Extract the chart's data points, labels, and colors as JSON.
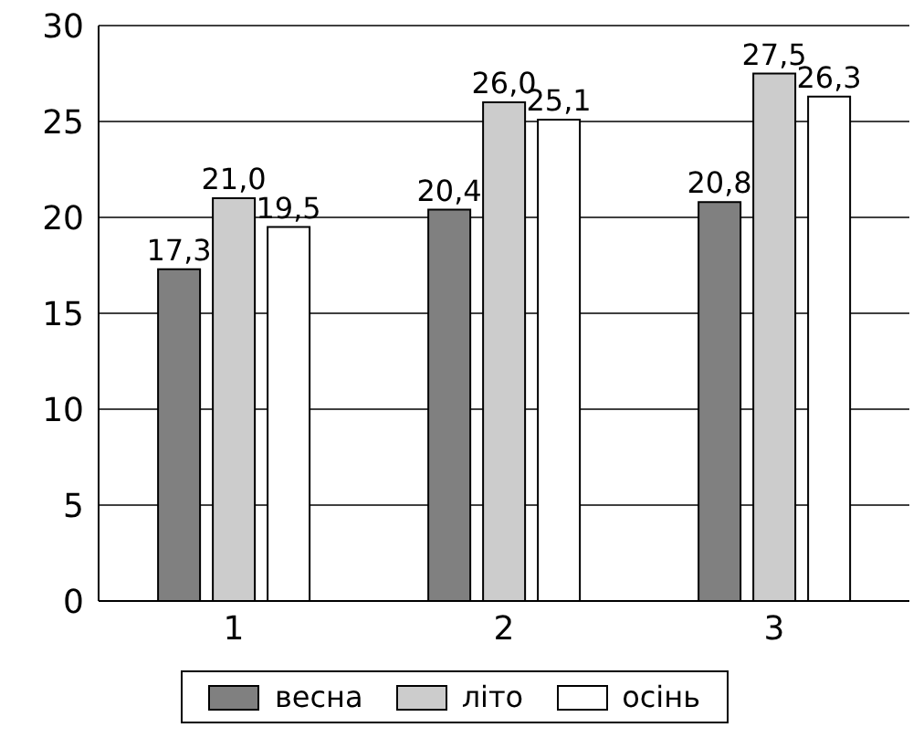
{
  "chart_data": {
    "type": "bar",
    "categories": [
      "1",
      "2",
      "3"
    ],
    "series": [
      {
        "name": "весна",
        "color": "#808080",
        "values": [
          17.3,
          20.4,
          20.8
        ],
        "value_labels": [
          "17,3",
          "20,4",
          "20,8"
        ]
      },
      {
        "name": "літо",
        "color": "#cccccc",
        "values": [
          21.0,
          26.0,
          27.5
        ],
        "value_labels": [
          "21,0",
          "26,0",
          "27,5"
        ]
      },
      {
        "name": "осінь",
        "color": "#ffffff",
        "values": [
          19.5,
          25.1,
          26.3
        ],
        "value_labels": [
          "19,5",
          "25,1",
          "26,3"
        ]
      }
    ],
    "ylim": [
      0,
      30
    ],
    "yticks": [
      0,
      5,
      10,
      15,
      20,
      25,
      30
    ],
    "grid": "y",
    "legend": "bottom"
  }
}
